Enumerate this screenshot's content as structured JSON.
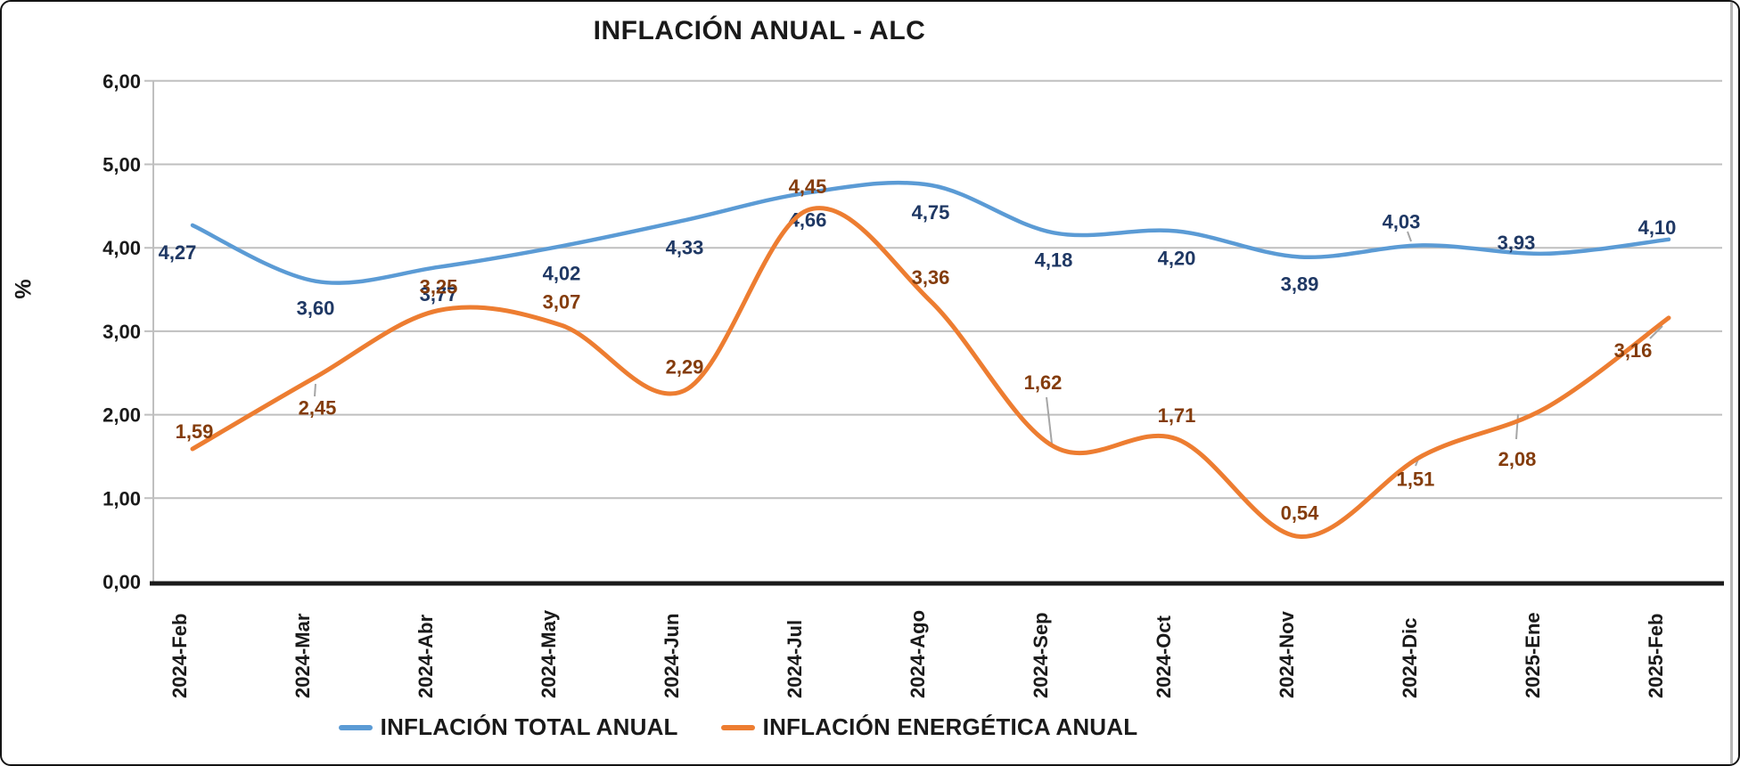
{
  "chart_data": {
    "type": "line",
    "title": "INFLACIÓN ANUAL - ALC",
    "xlabel": "",
    "ylabel": "%",
    "ylim": [
      0,
      6
    ],
    "grid": true,
    "legend_position": "bottom",
    "y_ticks": [
      "6,00",
      "5,00",
      "4,00",
      "3,00",
      "2,00",
      "1,00",
      "0,00"
    ],
    "y_tick_values": [
      6,
      5,
      4,
      3,
      2,
      1,
      0
    ],
    "categories": [
      "2024-Feb",
      "2024-Mar",
      "2024-Abr",
      "2024-May",
      "2024-Jun",
      "2024-Jul",
      "2024-Ago",
      "2024-Sep",
      "2024-Oct",
      "2024-Nov",
      "2024-Dic",
      "2025-Ene",
      "2025-Feb"
    ],
    "series": [
      {
        "name": "INFLACIÓN TOTAL ANUAL",
        "color": "#5B9BD5",
        "label_color": "#1F3864",
        "values": [
          4.27,
          3.6,
          3.77,
          4.02,
          4.33,
          4.66,
          4.75,
          4.18,
          4.2,
          3.89,
          4.03,
          3.93,
          4.1
        ],
        "labels": [
          "4,27",
          "3,60",
          "3,77",
          "4,02",
          "4,33",
          "4,66",
          "4,75",
          "4,18",
          "4,20",
          "3,89",
          "4,03",
          "3,93",
          "4,10"
        ]
      },
      {
        "name": "INFLACIÓN ENERGÉTICA ANUAL",
        "color": "#ED7D31",
        "label_color": "#843C0C",
        "values": [
          1.59,
          2.45,
          3.25,
          3.07,
          2.29,
          4.45,
          3.36,
          1.62,
          1.71,
          0.54,
          1.51,
          2.08,
          3.16
        ],
        "labels": [
          "1,59",
          "2,45",
          "3,25",
          "3,07",
          "2,29",
          "4,45",
          "3,36",
          "1,62",
          "1,71",
          "0,54",
          "1,51",
          "2,08",
          "3,16"
        ]
      }
    ],
    "gridline_color": "#BFBFBF",
    "axis_color": "#1a1a1a",
    "leader_line_color": "#A6A6A6"
  }
}
